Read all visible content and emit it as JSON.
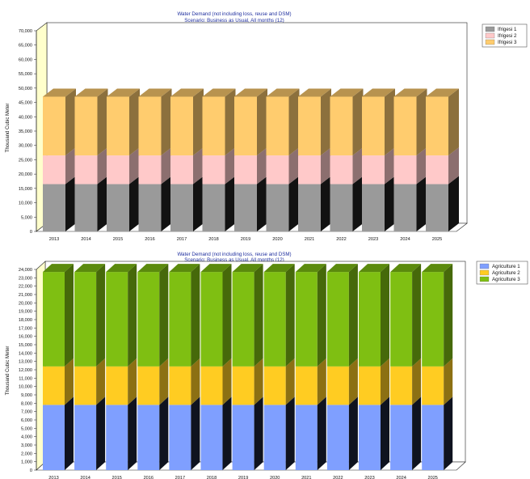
{
  "chart_data": [
    {
      "type": "bar",
      "stacked": true,
      "title": "Water Demand (not including loss, reuse and DSM)",
      "subtitle": "Scenario: Business as Usual,  All months (12)",
      "ylabel": "Thousand Cubic Meter",
      "ylim": [
        0,
        70000
      ],
      "yticks": [
        "0",
        "5,000",
        "10,000",
        "15,000",
        "20,000",
        "25,000",
        "30,000",
        "35,000",
        "40,000",
        "45,000",
        "50,000",
        "55,000",
        "60,000",
        "65,000",
        "70,000"
      ],
      "categories": [
        "2013",
        "2014",
        "2015",
        "2016",
        "2017",
        "2018",
        "2019",
        "2020",
        "2021",
        "2022",
        "2023",
        "2024",
        "2025"
      ],
      "legend_position": "right",
      "series": [
        {
          "name": "Ifrigesi 1",
          "color": "#9a9a9a",
          "values": [
            16500,
            16500,
            16500,
            16500,
            16500,
            16500,
            16500,
            16500,
            16500,
            16500,
            16500,
            16500,
            16500
          ]
        },
        {
          "name": "Ifrigesi 2",
          "color": "#ffc9c9",
          "values": [
            10000,
            10000,
            10000,
            10000,
            10000,
            10000,
            10000,
            10000,
            10000,
            10000,
            10000,
            10000,
            10000
          ]
        },
        {
          "name": "Ifrigesi 3",
          "color": "#ffcc6e",
          "values": [
            20500,
            20500,
            20500,
            20500,
            20500,
            20500,
            20500,
            20500,
            20500,
            20500,
            20500,
            20500,
            20500
          ]
        }
      ]
    },
    {
      "type": "bar",
      "stacked": true,
      "title": "Water Demand (not including loss, reuse and DSM)",
      "subtitle": "Scenario: Business as Usual,  All months (12)",
      "ylabel": "Thousand Cubic Meter",
      "ylim": [
        0,
        24000
      ],
      "yticks": [
        "0",
        "1,000",
        "2,000",
        "3,000",
        "4,000",
        "5,000",
        "6,000",
        "7,000",
        "8,000",
        "9,000",
        "10,000",
        "11,000",
        "12,000",
        "13,000",
        "14,000",
        "15,000",
        "16,000",
        "17,000",
        "18,000",
        "19,000",
        "20,000",
        "21,000",
        "22,000",
        "23,000",
        "24,000"
      ],
      "categories": [
        "2013",
        "2014",
        "2015",
        "2016",
        "2017",
        "2018",
        "2019",
        "2020",
        "2021",
        "2022",
        "2023",
        "2024",
        "2025"
      ],
      "legend_position": "right",
      "series": [
        {
          "name": "Agriculture 1",
          "color": "#7f9fff",
          "values": [
            7800,
            7800,
            7800,
            7800,
            7800,
            7800,
            7800,
            7800,
            7800,
            7800,
            7800,
            7800,
            7800
          ]
        },
        {
          "name": "Agriculture 2",
          "color": "#ffcc22",
          "values": [
            4600,
            4600,
            4600,
            4600,
            4600,
            4600,
            4600,
            4600,
            4600,
            4600,
            4600,
            4600,
            4600
          ]
        },
        {
          "name": "Agriculture 3",
          "color": "#7fbf12",
          "values": [
            11300,
            11300,
            11300,
            11300,
            11300,
            11300,
            11300,
            11300,
            11300,
            11300,
            11300,
            11300,
            11300
          ]
        }
      ]
    }
  ]
}
